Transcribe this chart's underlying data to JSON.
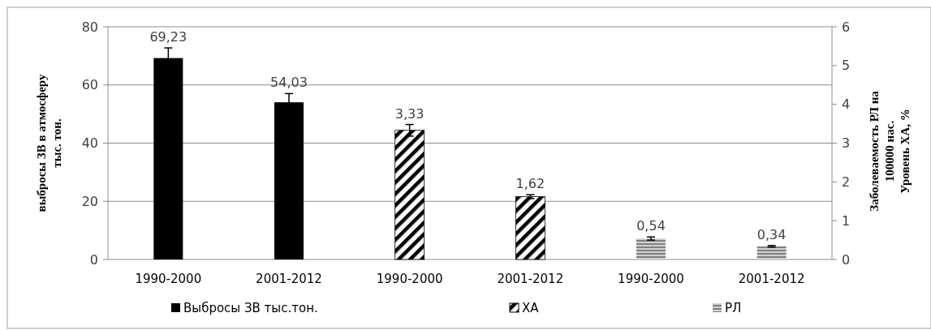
{
  "chart_data": {
    "type": "bar",
    "categories": [
      "1990-2000",
      "2001-2012",
      "1990-2000",
      "2001-2012",
      "1990-2000",
      "2001-2012"
    ],
    "ylabel": "выбросы  ЗВ в атмосферу\nтыс. тон.",
    "y2label": "Заболеваемость  РЛ на\n100000 нас.\nУровень  ХА, %",
    "ylim": [
      0,
      80
    ],
    "yticks": [
      0,
      20,
      40,
      60,
      80
    ],
    "y2lim": [
      0,
      6
    ],
    "y2ticks": [
      0,
      1,
      2,
      3,
      4,
      5,
      6
    ],
    "series": [
      {
        "name": "Выбросы ЗВ тыс.тон.",
        "color": "#000000",
        "values": [
          69.23,
          54.03,
          null,
          null,
          null,
          null
        ],
        "errors": [
          3.5,
          3,
          null,
          null,
          null,
          null
        ],
        "value_labels": [
          "69,23",
          "54,03",
          null,
          null,
          null,
          null
        ]
      },
      {
        "name": "ХА",
        "color": "#000000",
        "axis": "y2",
        "values": [
          null,
          null,
          3.33,
          1.62,
          null,
          null
        ],
        "errors": [
          null,
          null,
          0.15,
          0.05,
          null,
          null
        ],
        "value_labels": [
          null,
          null,
          "3,33",
          "1,62",
          null,
          null
        ]
      },
      {
        "name": "РЛ",
        "color": "#808080",
        "axis": "y2",
        "values": [
          null,
          null,
          null,
          null,
          0.54,
          0.34
        ],
        "errors": [
          null,
          null,
          null,
          null,
          0.04,
          0.02
        ],
        "value_labels": [
          null,
          null,
          null,
          null,
          "0,54",
          "0,34"
        ]
      }
    ],
    "grid": "y",
    "legend": "bottom"
  }
}
